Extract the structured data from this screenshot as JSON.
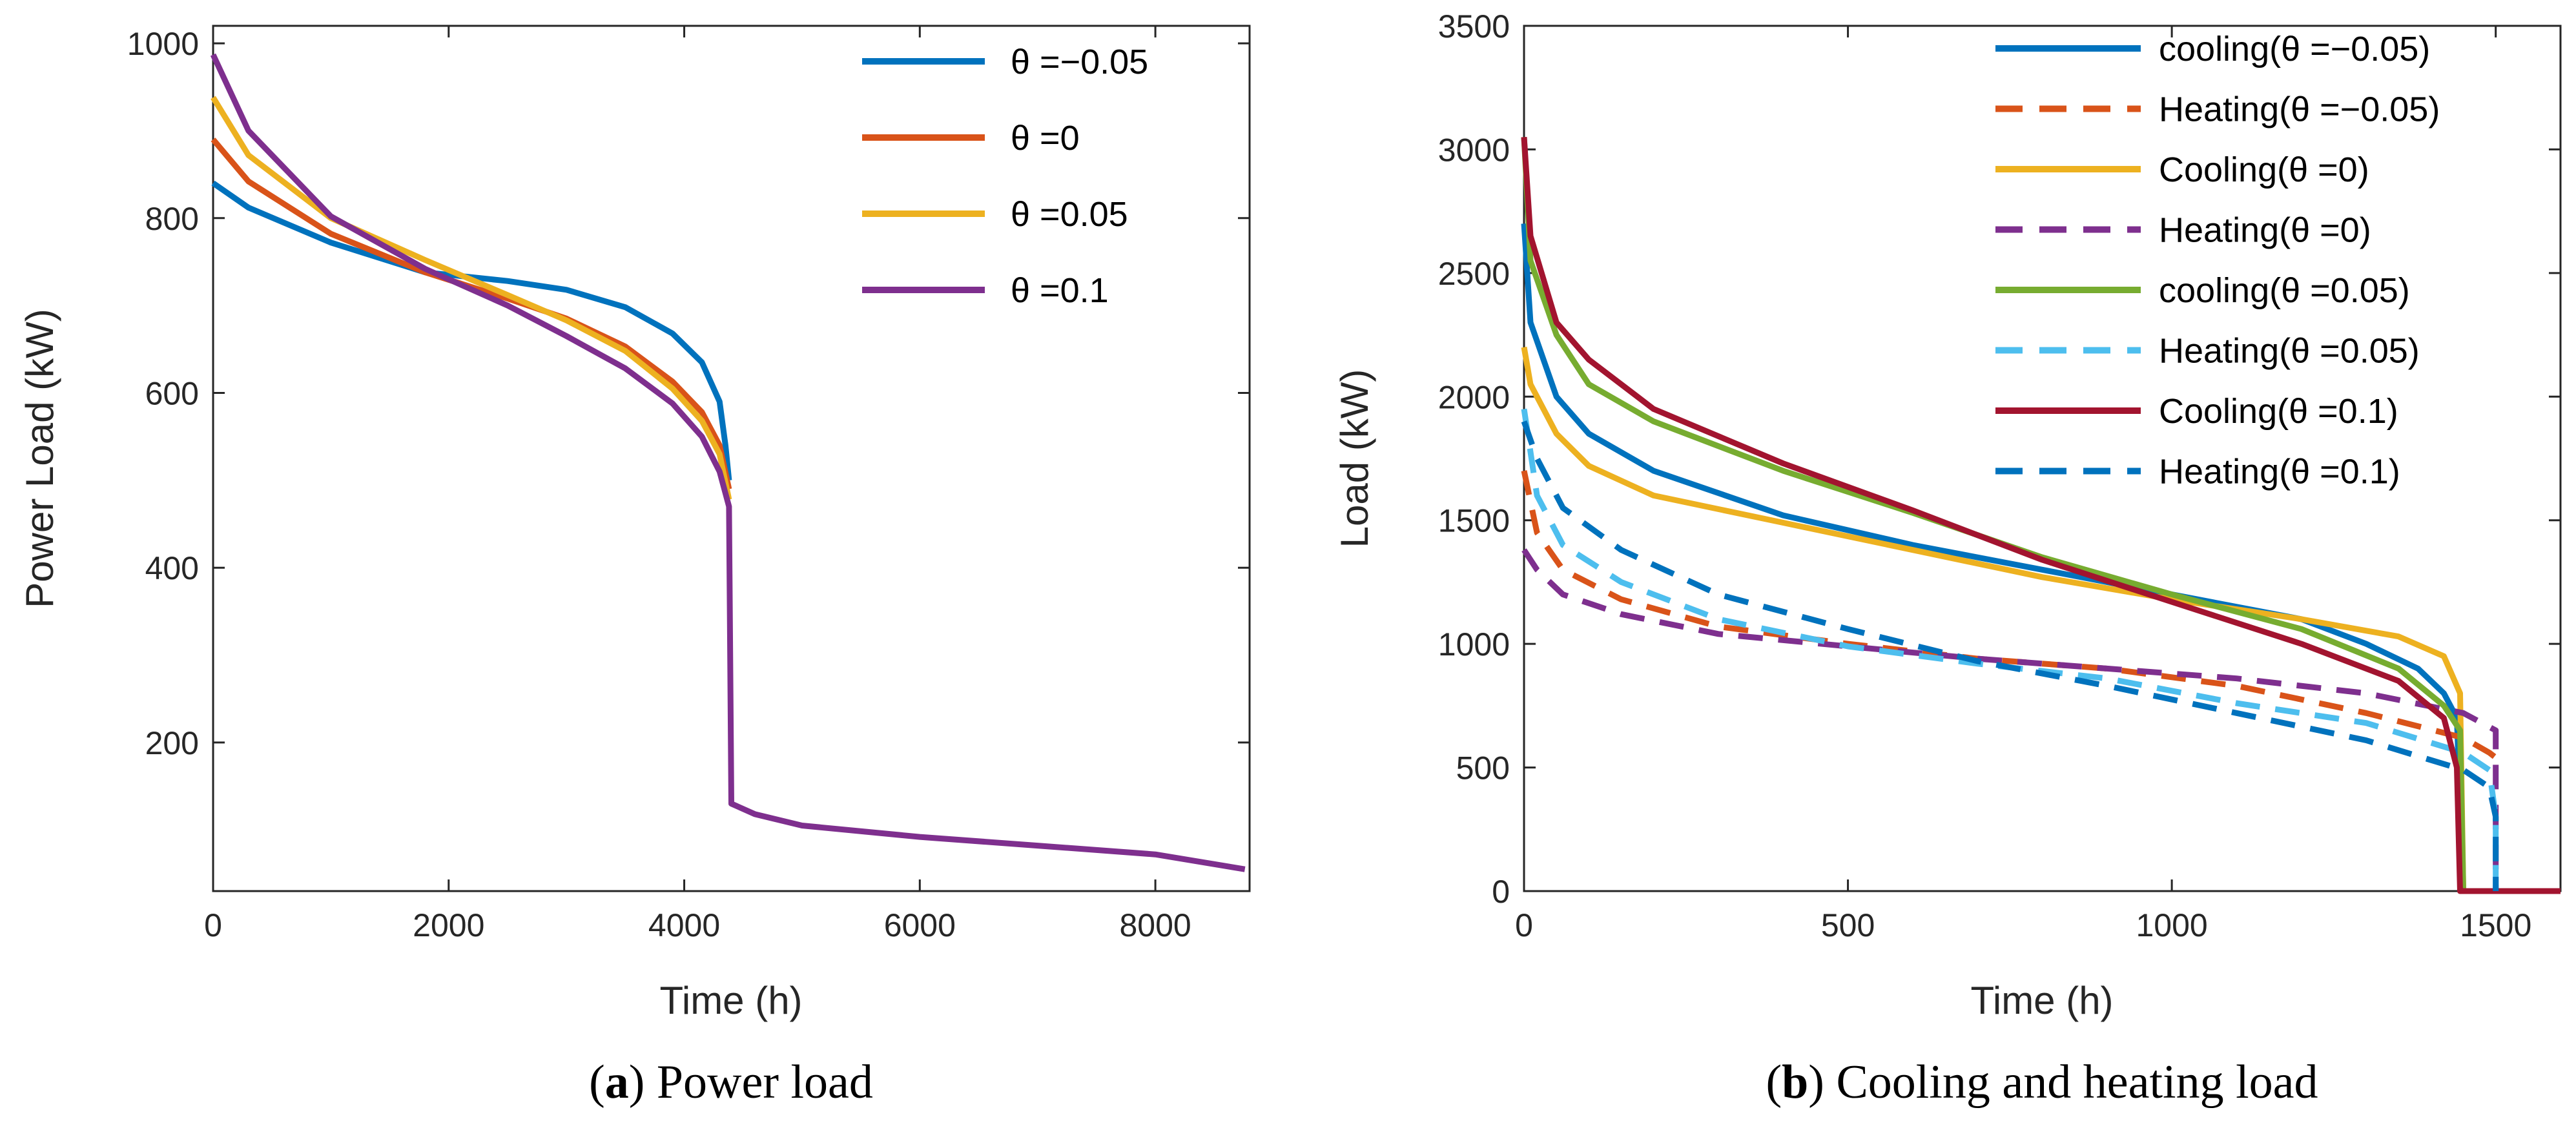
{
  "chart_data": [
    {
      "type": "line",
      "panel_letter": "a",
      "caption": "Power load",
      "xlabel": "Time (h)",
      "ylabel": "Power Load (kW)",
      "xlim": [
        0,
        8800
      ],
      "ylim": [
        30,
        1020
      ],
      "xticks": [
        0,
        2000,
        4000,
        6000,
        8000
      ],
      "yticks": [
        200,
        400,
        600,
        800,
        1000
      ],
      "legend_position": "top-right",
      "series": [
        {
          "name": "θ =−0.05",
          "color": "#0072BD",
          "dash": "solid",
          "points": [
            [
              0,
              840
            ],
            [
              300,
              812
            ],
            [
              1000,
              772
            ],
            [
              1800,
              738
            ],
            [
              2500,
              728
            ],
            [
              3000,
              718
            ],
            [
              3500,
              698
            ],
            [
              3900,
              668
            ],
            [
              4150,
              635
            ],
            [
              4300,
              590
            ],
            [
              4350,
              540
            ],
            [
              4380,
              500
            ]
          ]
        },
        {
          "name": "θ =0",
          "color": "#D95319",
          "dash": "solid",
          "points": [
            [
              0,
              890
            ],
            [
              300,
              842
            ],
            [
              1000,
              782
            ],
            [
              1800,
              738
            ],
            [
              2500,
              708
            ],
            [
              3000,
              685
            ],
            [
              3500,
              653
            ],
            [
              3900,
              613
            ],
            [
              4150,
              578
            ],
            [
              4300,
              540
            ],
            [
              4380,
              490
            ]
          ]
        },
        {
          "name": "θ =0.05",
          "color": "#EDB120",
          "dash": "solid",
          "points": [
            [
              0,
              938
            ],
            [
              300,
              872
            ],
            [
              1000,
              800
            ],
            [
              1800,
              752
            ],
            [
              2500,
              712
            ],
            [
              3000,
              683
            ],
            [
              3500,
              648
            ],
            [
              3900,
              605
            ],
            [
              4150,
              568
            ],
            [
              4300,
              530
            ],
            [
              4380,
              478
            ]
          ]
        },
        {
          "name": "θ =0.1",
          "color": "#7E2F8E",
          "dash": "solid",
          "points": [
            [
              0,
              987
            ],
            [
              300,
              900
            ],
            [
              1000,
              802
            ],
            [
              1800,
              742
            ],
            [
              2500,
              700
            ],
            [
              3000,
              665
            ],
            [
              3500,
              628
            ],
            [
              3900,
              588
            ],
            [
              4150,
              550
            ],
            [
              4300,
              510
            ],
            [
              4380,
              470
            ],
            [
              4400,
              130
            ],
            [
              4600,
              118
            ],
            [
              5000,
              105
            ],
            [
              6000,
              92
            ],
            [
              7000,
              82
            ],
            [
              8000,
              72
            ],
            [
              8760,
              55
            ]
          ]
        }
      ]
    },
    {
      "type": "line",
      "panel_letter": "b",
      "caption": "Cooling and heating load",
      "xlabel": "Time (h)",
      "ylabel": "Load (kW)",
      "xlim": [
        0,
        1600
      ],
      "ylim": [
        0,
        3500
      ],
      "xticks": [
        0,
        500,
        1000,
        1500
      ],
      "yticks": [
        0,
        500,
        1000,
        1500,
        2000,
        2500,
        3000,
        3500
      ],
      "legend_position": "top-right",
      "series": [
        {
          "name": "cooling(θ =−0.05)",
          "color": "#0072BD",
          "dash": "solid",
          "points": [
            [
              0,
              2700
            ],
            [
              10,
              2300
            ],
            [
              50,
              2000
            ],
            [
              100,
              1850
            ],
            [
              200,
              1700
            ],
            [
              400,
              1520
            ],
            [
              600,
              1400
            ],
            [
              800,
              1300
            ],
            [
              1000,
              1200
            ],
            [
              1200,
              1100
            ],
            [
              1300,
              1000
            ],
            [
              1380,
              900
            ],
            [
              1420,
              800
            ],
            [
              1440,
              700
            ],
            [
              1450,
              0
            ],
            [
              1600,
              0
            ]
          ]
        },
        {
          "name": "Heating(θ =−0.05)",
          "color": "#D95319",
          "dash": "dashed",
          "points": [
            [
              0,
              1700
            ],
            [
              20,
              1450
            ],
            [
              60,
              1300
            ],
            [
              150,
              1180
            ],
            [
              300,
              1070
            ],
            [
              500,
              1000
            ],
            [
              700,
              940
            ],
            [
              900,
              900
            ],
            [
              1100,
              830
            ],
            [
              1300,
              720
            ],
            [
              1450,
              620
            ],
            [
              1490,
              560
            ],
            [
              1500,
              540
            ]
          ]
        },
        {
          "name": "Cooling(θ =0)",
          "color": "#EDB120",
          "dash": "solid",
          "points": [
            [
              0,
              2200
            ],
            [
              10,
              2050
            ],
            [
              50,
              1850
            ],
            [
              100,
              1720
            ],
            [
              200,
              1600
            ],
            [
              400,
              1490
            ],
            [
              600,
              1380
            ],
            [
              800,
              1270
            ],
            [
              1000,
              1180
            ],
            [
              1200,
              1100
            ],
            [
              1350,
              1030
            ],
            [
              1420,
              950
            ],
            [
              1445,
              800
            ],
            [
              1450,
              0
            ]
          ]
        },
        {
          "name": "Heating(θ =0)",
          "color": "#7E2F8E",
          "dash": "dashed",
          "points": [
            [
              0,
              1380
            ],
            [
              20,
              1300
            ],
            [
              60,
              1200
            ],
            [
              150,
              1120
            ],
            [
              300,
              1040
            ],
            [
              500,
              990
            ],
            [
              700,
              940
            ],
            [
              900,
              900
            ],
            [
              1100,
              860
            ],
            [
              1300,
              800
            ],
            [
              1450,
              720
            ],
            [
              1500,
              650
            ],
            [
              1500,
              0
            ]
          ]
        },
        {
          "name": "cooling(θ =0.05)",
          "color": "#77AC30",
          "dash": "solid",
          "points": [
            [
              0,
              3050
            ],
            [
              10,
              2550
            ],
            [
              50,
              2250
            ],
            [
              100,
              2050
            ],
            [
              200,
              1900
            ],
            [
              400,
              1700
            ],
            [
              600,
              1530
            ],
            [
              800,
              1350
            ],
            [
              1000,
              1200
            ],
            [
              1200,
              1060
            ],
            [
              1350,
              900
            ],
            [
              1420,
              750
            ],
            [
              1445,
              650
            ],
            [
              1450,
              0
            ]
          ]
        },
        {
          "name": "Heating(θ =0.05)",
          "color": "#4DBEEE",
          "dash": "dashed",
          "points": [
            [
              0,
              1950
            ],
            [
              20,
              1600
            ],
            [
              60,
              1400
            ],
            [
              150,
              1250
            ],
            [
              300,
              1100
            ],
            [
              500,
              990
            ],
            [
              700,
              920
            ],
            [
              900,
              860
            ],
            [
              1100,
              760
            ],
            [
              1300,
              680
            ],
            [
              1450,
              560
            ],
            [
              1490,
              490
            ],
            [
              1500,
              300
            ],
            [
              1500,
              0
            ]
          ]
        },
        {
          "name": "Cooling(θ =0.1)",
          "color": "#A2142F",
          "dash": "solid",
          "points": [
            [
              0,
              3050
            ],
            [
              10,
              2650
            ],
            [
              50,
              2300
            ],
            [
              100,
              2150
            ],
            [
              200,
              1950
            ],
            [
              400,
              1730
            ],
            [
              600,
              1540
            ],
            [
              800,
              1340
            ],
            [
              1000,
              1170
            ],
            [
              1200,
              1000
            ],
            [
              1350,
              850
            ],
            [
              1420,
              700
            ],
            [
              1440,
              500
            ],
            [
              1445,
              0
            ],
            [
              1600,
              0
            ]
          ]
        },
        {
          "name": "Heating(θ =0.1)",
          "color": "#0072BD",
          "dash": "dashed",
          "points": [
            [
              0,
              1900
            ],
            [
              20,
              1750
            ],
            [
              60,
              1550
            ],
            [
              150,
              1380
            ],
            [
              300,
              1200
            ],
            [
              500,
              1060
            ],
            [
              700,
              930
            ],
            [
              900,
              830
            ],
            [
              1100,
              720
            ],
            [
              1300,
              610
            ],
            [
              1450,
              490
            ],
            [
              1490,
              420
            ],
            [
              1500,
              300
            ],
            [
              1500,
              0
            ]
          ]
        }
      ]
    }
  ]
}
